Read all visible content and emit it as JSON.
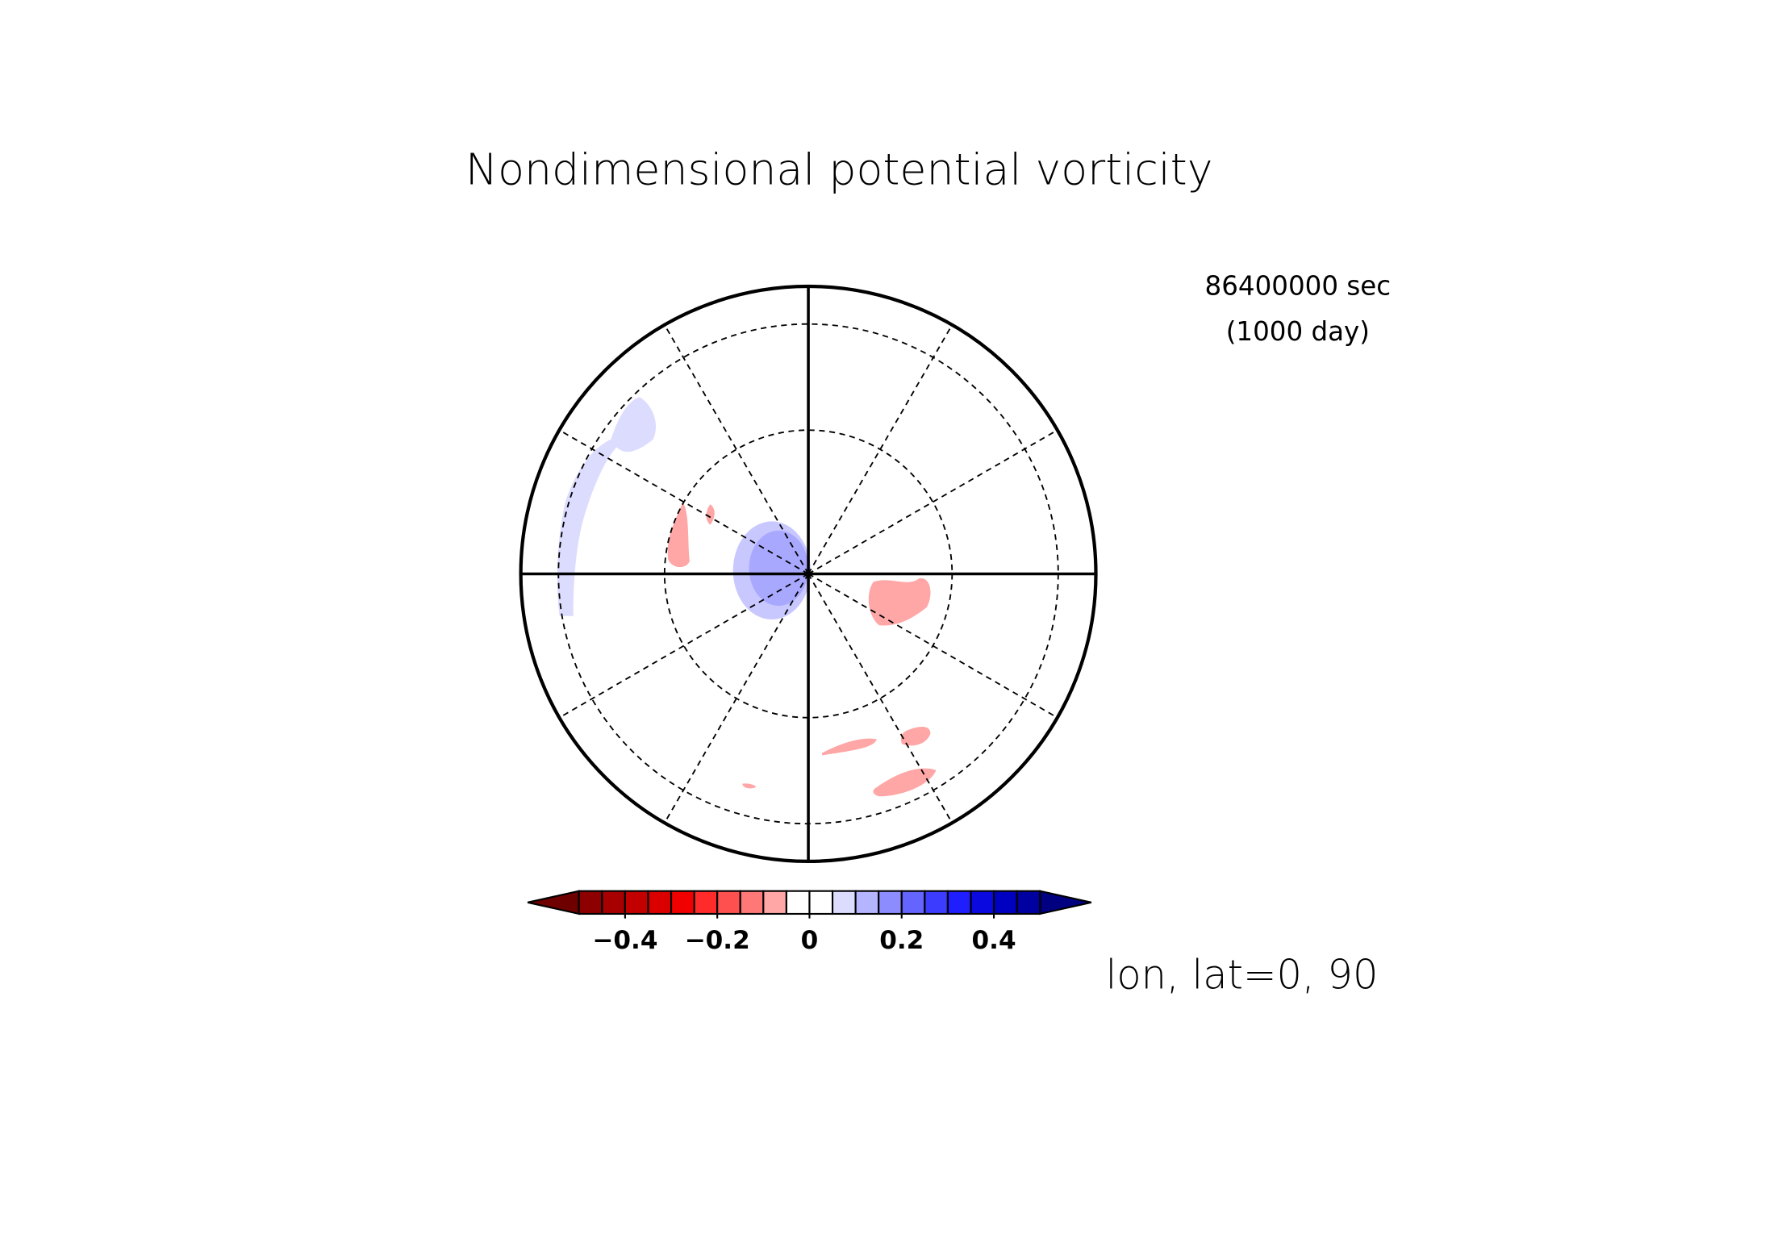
{
  "chart_data": {
    "type": "polar-contour",
    "title": "Nondimensional potential vorticity",
    "annotations": [
      "86400000 sec",
      "(1000 day)"
    ],
    "projection_label": "lon, lat=0, 90",
    "colorbar": {
      "levels": [
        -0.5,
        -0.45,
        -0.4,
        -0.35,
        -0.3,
        -0.25,
        -0.2,
        -0.15,
        -0.1,
        -0.05,
        0,
        0.05,
        0.1,
        0.15,
        0.2,
        0.25,
        0.3,
        0.35,
        0.4,
        0.45,
        0.5
      ],
      "colors": [
        "#8e0000",
        "#a80000",
        "#c20000",
        "#da0000",
        "#f00000",
        "#ff2a2a",
        "#ff5050",
        "#ff7878",
        "#ffa6a6",
        "#ffffff",
        "#ffffff",
        "#dcdcff",
        "#b4b4ff",
        "#8c8cff",
        "#6464ff",
        "#3c3cff",
        "#1e1eff",
        "#0a0ae0",
        "#0000c0",
        "#0000a0"
      ],
      "under_color": "#6e0000",
      "over_color": "#000080",
      "ticks": [
        {
          "value": -0.4,
          "label": "−0.4"
        },
        {
          "value": -0.2,
          "label": "−0.2"
        },
        0,
        0.2,
        0.4
      ]
    }
  }
}
